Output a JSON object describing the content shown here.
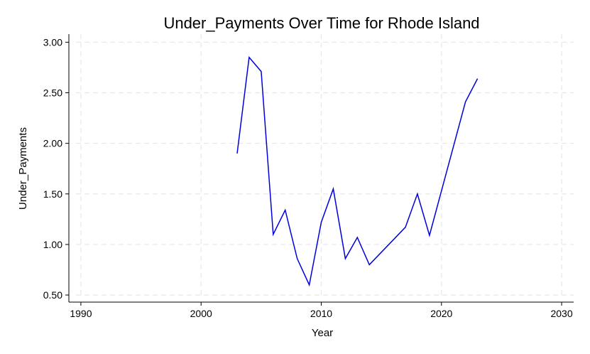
{
  "chart_data": {
    "type": "line",
    "title": "Under_Payments Over Time for Rhode Island",
    "xlabel": "Year",
    "ylabel": "Under_Payments",
    "xlim": [
      1989,
      2031
    ],
    "ylim": [
      0.43,
      3.08
    ],
    "xticks": [
      1990,
      2000,
      2010,
      2020,
      2030
    ],
    "xtick_labels": [
      "1990",
      "2000",
      "2010",
      "2020",
      "2030"
    ],
    "yticks": [
      0.5,
      1.0,
      1.5,
      2.0,
      2.5,
      3.0
    ],
    "ytick_labels": [
      "0.50",
      "1.00",
      "1.50",
      "2.00",
      "2.50",
      "3.00"
    ],
    "grid": true,
    "line_color": "#0000dd",
    "series": [
      {
        "x": [
          2003,
          2004,
          2005,
          2006,
          2007,
          2008,
          2009,
          2010,
          2011,
          2012,
          2013,
          2014,
          2017,
          2018,
          2019,
          2022,
          2023
        ],
        "values": [
          1.9,
          2.85,
          2.71,
          1.1,
          1.34,
          0.86,
          0.6,
          1.22,
          1.55,
          0.86,
          1.07,
          0.8,
          1.17,
          1.5,
          1.09,
          2.41,
          2.64
        ]
      }
    ]
  }
}
